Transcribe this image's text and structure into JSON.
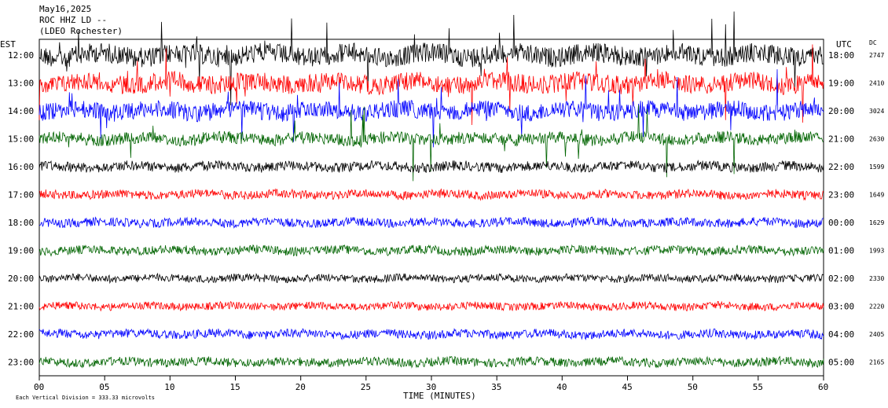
{
  "header": {
    "date": "May16,2025",
    "station": "ROC HHZ LD --",
    "location": "(LDEO Rochester)"
  },
  "left_axis_label": "EST",
  "right_axis_label": "UTC",
  "dc_label": "DC",
  "xlabel": "TIME (MINUTES)",
  "footer": "Each Vertical Division =  333.33 microvolts",
  "chart_data": {
    "type": "line",
    "title": "May16,2025",
    "xlabel": "TIME (MINUTES)",
    "xlim": [
      0,
      60
    ],
    "x_ticks": [
      "00",
      "05",
      "10",
      "15",
      "20",
      "25",
      "30",
      "35",
      "40",
      "45",
      "50",
      "55",
      "60"
    ],
    "rows": [
      {
        "est": "12:00",
        "utc": "18:00",
        "dc": "2747",
        "color": "#000000",
        "amp": 0.9,
        "spikes": true
      },
      {
        "est": "13:00",
        "utc": "19:00",
        "dc": "2410",
        "color": "#ff0000",
        "amp": 0.85,
        "spikes": true
      },
      {
        "est": "14:00",
        "utc": "20:00",
        "dc": "3024",
        "color": "#0000ff",
        "amp": 0.8,
        "spikes": true
      },
      {
        "est": "15:00",
        "utc": "21:00",
        "dc": "2630",
        "color": "#006400",
        "amp": 0.55,
        "spikes": true
      },
      {
        "est": "16:00",
        "utc": "22:00",
        "dc": "1599",
        "color": "#000000",
        "amp": 0.45,
        "spikes": false
      },
      {
        "est": "17:00",
        "utc": "23:00",
        "dc": "1649",
        "color": "#ff0000",
        "amp": 0.4,
        "spikes": false
      },
      {
        "est": "18:00",
        "utc": "00:00",
        "dc": "1629",
        "color": "#0000ff",
        "amp": 0.4,
        "spikes": false
      },
      {
        "est": "19:00",
        "utc": "01:00",
        "dc": "1993",
        "color": "#006400",
        "amp": 0.4,
        "spikes": false
      },
      {
        "est": "20:00",
        "utc": "02:00",
        "dc": "2330",
        "color": "#000000",
        "amp": 0.35,
        "spikes": false
      },
      {
        "est": "21:00",
        "utc": "03:00",
        "dc": "2220",
        "color": "#ff0000",
        "amp": 0.35,
        "spikes": false
      },
      {
        "est": "22:00",
        "utc": "04:00",
        "dc": "2405",
        "color": "#0000ff",
        "amp": 0.4,
        "spikes": false
      },
      {
        "est": "23:00",
        "utc": "05:00",
        "dc": "2165",
        "color": "#006400",
        "amp": 0.4,
        "spikes": false
      }
    ],
    "colors": [
      "#000000",
      "#ff0000",
      "#0000ff",
      "#006400"
    ]
  }
}
